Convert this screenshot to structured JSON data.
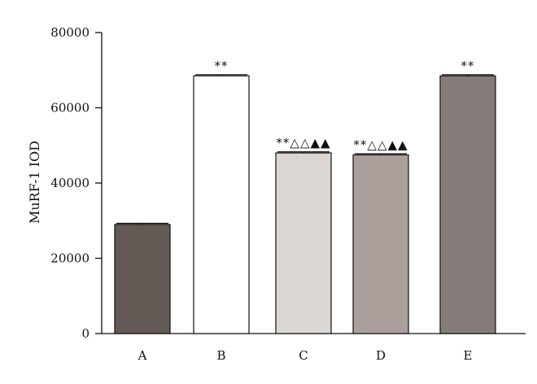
{
  "chart_data": {
    "type": "bar",
    "categories": [
      "A",
      "B",
      "C",
      "D",
      "E"
    ],
    "values": [
      29000,
      68500,
      48000,
      47500,
      68500
    ],
    "errors": [
      300,
      300,
      300,
      300,
      300
    ],
    "annotations": [
      "",
      "**",
      "**△△▲▲",
      "**△△▲▲",
      "**"
    ],
    "colors": [
      "#645a55",
      "#ffffff",
      "#dcd6d2",
      "#aa9f9b",
      "#857c79"
    ],
    "ylabel": "MuRF-1 IOD",
    "ylim": [
      0,
      80000
    ],
    "yticks": [
      0,
      20000,
      40000,
      60000,
      80000
    ],
    "grid": false,
    "legend": "none"
  }
}
